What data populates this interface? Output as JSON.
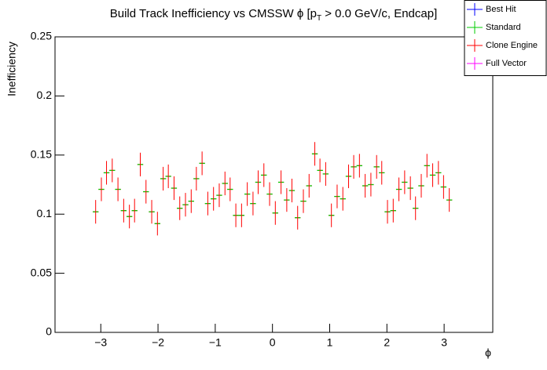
{
  "chart_data": {
    "type": "errorbar",
    "title_parts": [
      "Build Track Inefficiency vs CMSSW ϕ [p",
      "T",
      " > 0.0 GeV/c, Endcap]"
    ],
    "xlabel": "ϕ",
    "ylabel": "Inefficiency",
    "xlim": [
      -3.8,
      3.85
    ],
    "ylim": [
      0,
      0.25
    ],
    "xticks": [
      {
        "value": -3,
        "label": "−3"
      },
      {
        "value": -2,
        "label": "−2"
      },
      {
        "value": -1,
        "label": "−1"
      },
      0,
      1,
      2,
      3
    ],
    "yticks": [
      0,
      0.05,
      0.1,
      0.15,
      0.2,
      0.25
    ],
    "legend": "upper right",
    "x": [
      -3.09,
      -2.99,
      -2.9,
      -2.8,
      -2.7,
      -2.6,
      -2.5,
      -2.41,
      -2.31,
      -2.21,
      -2.11,
      -2.01,
      -1.91,
      -1.82,
      -1.72,
      -1.62,
      -1.52,
      -1.42,
      -1.33,
      -1.23,
      -1.13,
      -1.03,
      -0.93,
      -0.83,
      -0.74,
      -0.64,
      -0.54,
      -0.44,
      -0.34,
      -0.25,
      -0.15,
      -0.05,
      0.05,
      0.15,
      0.25,
      0.34,
      0.44,
      0.54,
      0.64,
      0.74,
      0.83,
      0.93,
      1.03,
      1.13,
      1.23,
      1.33,
      1.42,
      1.52,
      1.62,
      1.72,
      1.82,
      1.91,
      2.01,
      2.11,
      2.21,
      2.31,
      2.41,
      2.5,
      2.6,
      2.7,
      2.8,
      2.9,
      2.99,
      3.09
    ],
    "series": [
      {
        "name": "Best Hit",
        "color": "#0000ff",
        "values": [
          null,
          null,
          null,
          null,
          null,
          null,
          null,
          null,
          null,
          null,
          null,
          null,
          null,
          null,
          null,
          null,
          null,
          null,
          null,
          null,
          null,
          null,
          null,
          null,
          null,
          null,
          null,
          null,
          null,
          null,
          null,
          null,
          null,
          null,
          null,
          null,
          null,
          null,
          null,
          null,
          null,
          null,
          null,
          null,
          null,
          null,
          null,
          null,
          null,
          null,
          null,
          null,
          null,
          null,
          null,
          null,
          null,
          null,
          null,
          null,
          null,
          null,
          null,
          null
        ]
      },
      {
        "name": "Standard",
        "color": "#00cc00",
        "values": [
          0.102,
          0.121,
          0.135,
          0.137,
          0.121,
          0.103,
          0.098,
          0.103,
          0.142,
          0.119,
          0.102,
          0.092,
          0.13,
          0.132,
          0.122,
          0.105,
          0.108,
          0.111,
          0.13,
          0.143,
          0.109,
          0.113,
          0.116,
          0.126,
          0.121,
          0.099,
          0.099,
          0.117,
          0.109,
          0.127,
          0.133,
          0.117,
          0.101,
          0.127,
          0.112,
          0.12,
          0.097,
          0.111,
          0.124,
          0.151,
          0.137,
          0.134,
          0.099,
          0.115,
          0.113,
          0.132,
          0.14,
          0.141,
          0.124,
          0.125,
          0.14,
          0.135,
          0.102,
          0.103,
          0.121,
          0.127,
          0.122,
          0.105,
          0.124,
          0.141,
          0.133,
          0.135,
          0.123,
          0.112
        ]
      },
      {
        "name": "Clone Engine",
        "color": "#ff0000",
        "values": [
          0.102,
          0.121,
          0.135,
          0.137,
          0.121,
          0.103,
          0.098,
          0.103,
          0.142,
          0.119,
          0.102,
          0.092,
          0.13,
          0.132,
          0.122,
          0.105,
          0.108,
          0.111,
          0.13,
          0.143,
          0.109,
          0.113,
          0.116,
          0.126,
          0.121,
          0.099,
          0.099,
          0.117,
          0.109,
          0.127,
          0.133,
          0.117,
          0.101,
          0.127,
          0.112,
          0.12,
          0.097,
          0.111,
          0.124,
          0.151,
          0.137,
          0.134,
          0.099,
          0.115,
          0.113,
          0.132,
          0.14,
          0.141,
          0.124,
          0.125,
          0.14,
          0.135,
          0.102,
          0.103,
          0.121,
          0.127,
          0.122,
          0.105,
          0.124,
          0.141,
          0.133,
          0.135,
          0.123,
          0.112
        ],
        "errors": [
          0.01,
          0.01,
          0.01,
          0.01,
          0.01,
          0.01,
          0.01,
          0.01,
          0.01,
          0.01,
          0.01,
          0.01,
          0.01,
          0.01,
          0.01,
          0.01,
          0.01,
          0.01,
          0.01,
          0.01,
          0.01,
          0.01,
          0.01,
          0.01,
          0.01,
          0.01,
          0.01,
          0.01,
          0.01,
          0.01,
          0.01,
          0.01,
          0.01,
          0.01,
          0.01,
          0.01,
          0.01,
          0.01,
          0.01,
          0.01,
          0.01,
          0.01,
          0.01,
          0.01,
          0.01,
          0.01,
          0.01,
          0.01,
          0.01,
          0.01,
          0.01,
          0.01,
          0.01,
          0.01,
          0.01,
          0.01,
          0.01,
          0.01,
          0.01,
          0.01,
          0.01,
          0.01,
          0.01,
          0.01
        ]
      },
      {
        "name": "Full Vector",
        "color": "#ff00ff",
        "values": [
          null,
          null,
          null,
          null,
          null,
          null,
          null,
          null,
          null,
          null,
          null,
          null,
          null,
          null,
          null,
          null,
          null,
          null,
          null,
          null,
          null,
          null,
          null,
          null,
          null,
          null,
          null,
          null,
          null,
          null,
          null,
          null,
          null,
          null,
          null,
          null,
          null,
          null,
          null,
          null,
          null,
          null,
          null,
          null,
          null,
          null,
          null,
          null,
          null,
          null,
          null,
          null,
          null,
          null,
          null,
          null,
          null,
          null,
          null,
          null,
          null,
          null,
          null,
          null
        ]
      }
    ]
  }
}
